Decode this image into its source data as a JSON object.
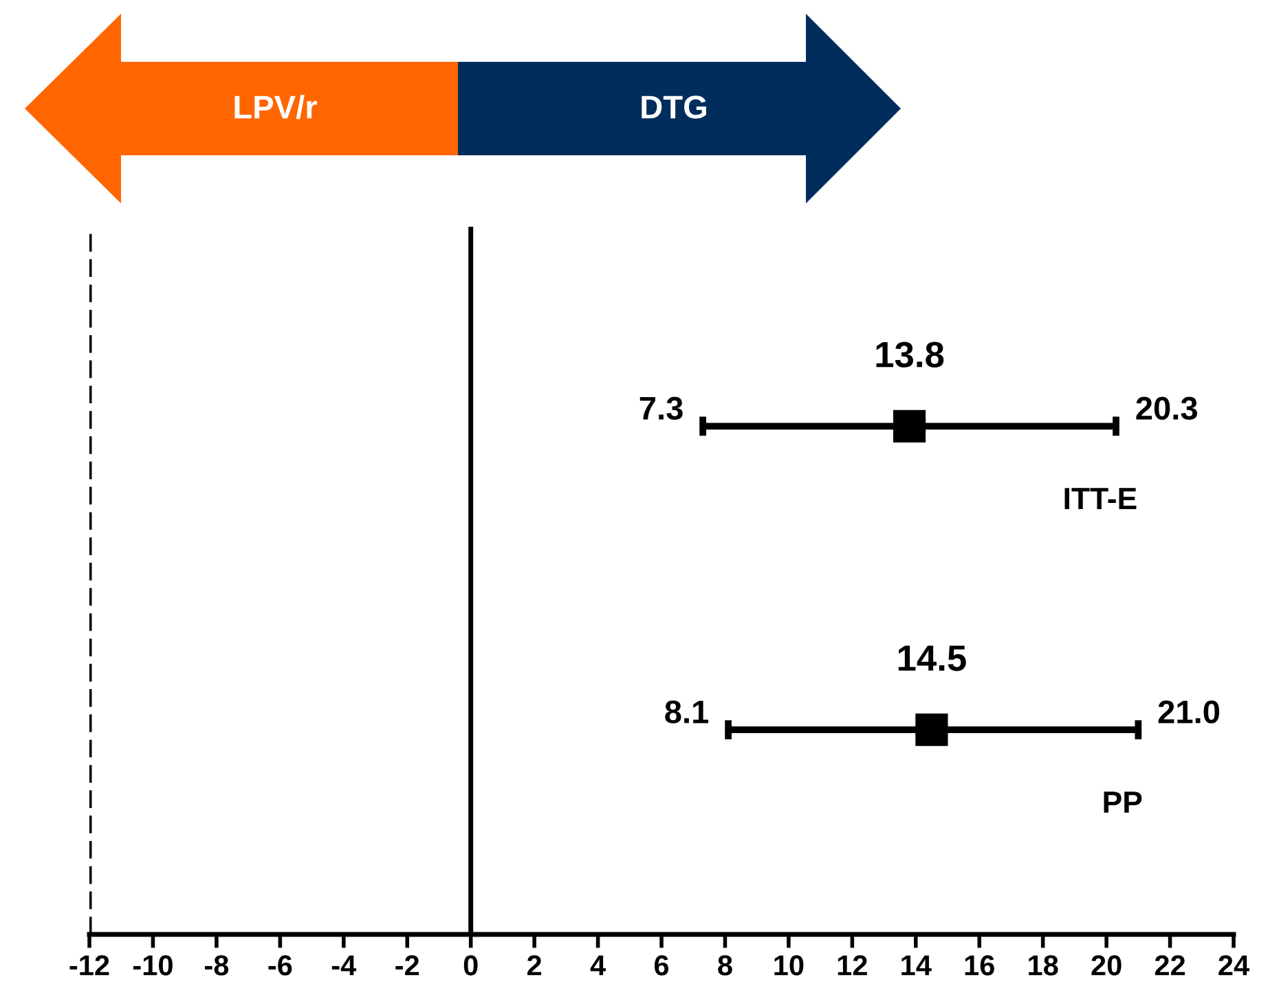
{
  "chart_data": {
    "type": "scatter",
    "orientation": "horizontal",
    "categories": [
      "ITT-E",
      "PP"
    ],
    "values": [
      13.8,
      14.5
    ],
    "errors": [
      [
        7.3,
        20.3
      ],
      [
        8.1,
        21.0
      ]
    ],
    "color": "#000000",
    "marker": "square",
    "data_labels": true,
    "annotations": [
      "7.3",
      "20.3",
      "8.1",
      "21.0",
      "LPV/r",
      "DTG"
    ],
    "ref_lines": [
      {
        "axis": "x",
        "value": -12,
        "line_style": "dashed",
        "color": "#000000"
      },
      {
        "axis": "x",
        "value": 0,
        "line_style": "solid",
        "color": "#000000"
      }
    ],
    "xlim": [
      -12,
      24
    ],
    "xticks": [
      -12,
      -10,
      -8,
      -6,
      -4,
      -2,
      0,
      2,
      4,
      6,
      8,
      10,
      12,
      14,
      16,
      18,
      20,
      22,
      24
    ],
    "tick_labels": "x",
    "grid": false,
    "legend": false
  }
}
